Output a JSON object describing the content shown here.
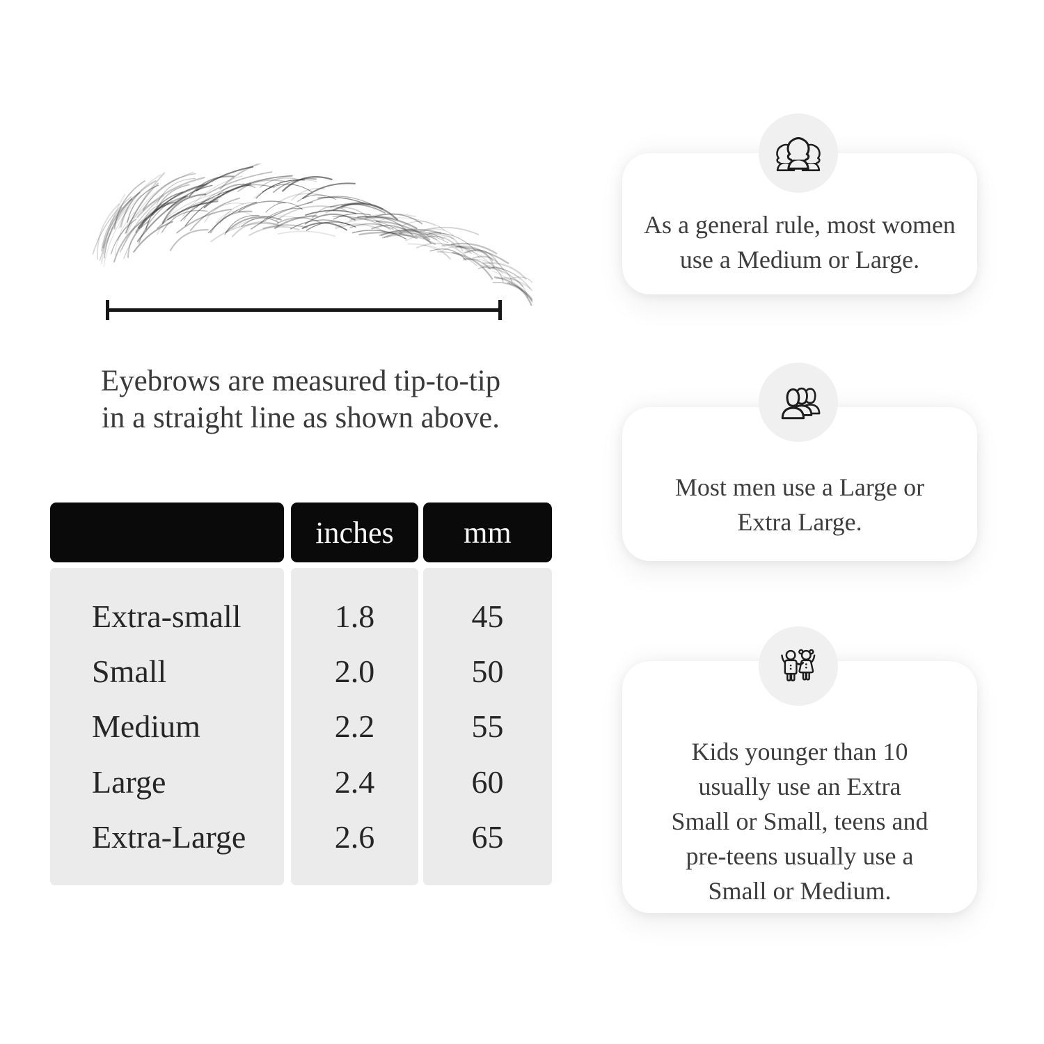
{
  "measure_diagram": {
    "caption_lines": [
      "Eyebrows are measured tip-to-tip",
      "in a straight line as shown above."
    ]
  },
  "size_table": {
    "header": {
      "size_label": "",
      "inches_label": "inches",
      "mm_label": "mm"
    },
    "rows": [
      {
        "label": "Extra-small",
        "inches": "1.8",
        "mm": "45"
      },
      {
        "label": "Small",
        "inches": "2.0",
        "mm": "50"
      },
      {
        "label": "Medium",
        "inches": "2.2",
        "mm": "55"
      },
      {
        "label": "Large",
        "inches": "2.4",
        "mm": "60"
      },
      {
        "label": "Extra-Large",
        "inches": "2.6",
        "mm": "65"
      }
    ]
  },
  "tips": [
    {
      "icon": "women-group-icon",
      "lines": [
        "As a general rule, most women",
        "use a Medium or Large."
      ]
    },
    {
      "icon": "men-group-icon",
      "lines": [
        "Most men use a Large or",
        "Extra Large."
      ]
    },
    {
      "icon": "children-icon",
      "lines": [
        "Kids younger than 10",
        "usually use an Extra",
        "Small or Small, teens and",
        "pre-teens usually use a",
        "Small or Medium."
      ]
    }
  ],
  "colors": {
    "page_bg": "#ffffff",
    "text": "#3a3a3a",
    "line": "#161616",
    "table_header_bg": "#0a0a0a",
    "table_header_text": "#f7f7f7",
    "table_body_bg": "#ebebeb",
    "icon_circle_bg": "#f0f0f0"
  }
}
